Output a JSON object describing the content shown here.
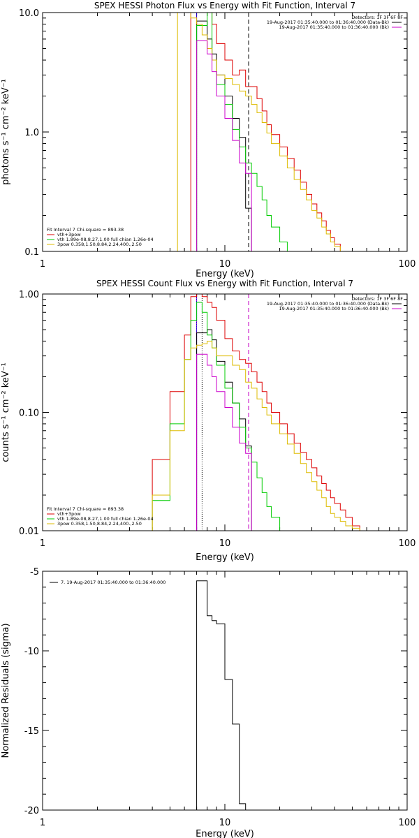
{
  "colors": {
    "black": "#000000",
    "red": "#dd0000",
    "green": "#00cc00",
    "yellow": "#ddbb00",
    "magenta": "#cc00cc",
    "blue": "#0000cc"
  },
  "chart_data": [
    {
      "type": "line",
      "step": true,
      "title": "SPEX HESSI Photon Flux vs Energy with Fit Function, Interval 7",
      "xlabel": "Energy (keV)",
      "ylabel": "photons s⁻¹ cm⁻² keV⁻¹",
      "xscale": "log",
      "yscale": "log",
      "xlim": [
        1,
        100
      ],
      "ylim": [
        0.1,
        10
      ],
      "xticks": [
        "1",
        "10",
        "100"
      ],
      "yticks": [
        "0.1",
        "1.0",
        "10.0"
      ],
      "legend_top": {
        "detectors": "Detectors: 1F 3F 6F 8F",
        "entries": [
          {
            "text": "19-Aug-2017 01:35:40.000 to 01:36:40.000 (Data-Bk)",
            "color": "black"
          },
          {
            "text": "19-Aug-2017 01:35:40.000 to 01:36:40.000 (Bk)",
            "color": "magenta"
          }
        ]
      },
      "legend_bottom": {
        "header": "Fit Interval 7   Chi-square = 893.38",
        "entries": [
          {
            "text": "vth+3pow",
            "color": "red"
          },
          {
            "text": "vth 1.89e-08,8.27,1.00  full chian 1.26e-04",
            "color": "green"
          },
          {
            "text": "3pow 0.358,1.50,8.84,2.24,400.,2.50",
            "color": "yellow"
          }
        ]
      },
      "vlines": [
        {
          "x": 7.0,
          "color": "blue",
          "style": "solid"
        },
        {
          "x": 7.0,
          "color": "magenta",
          "style": "dotted"
        },
        {
          "x": 13.5,
          "color": "black",
          "style": "dashed"
        }
      ],
      "edges": [
        3,
        3.5,
        4,
        4.5,
        5,
        5.5,
        6,
        6.5,
        7,
        7.5,
        8,
        8.5,
        9,
        10,
        11,
        12,
        13,
        14,
        15,
        16,
        17,
        18,
        20,
        22,
        24,
        26,
        28,
        30,
        32,
        34,
        36,
        38,
        40,
        43,
        46,
        50,
        55,
        60,
        65
      ],
      "series": [
        {
          "color": "black",
          "values": [
            null,
            null,
            null,
            null,
            null,
            null,
            null,
            null,
            8.5,
            8.5,
            6.0,
            4.5,
            3.0,
            2.0,
            1.3,
            0.9,
            0.23
          ]
        },
        {
          "color": "red",
          "values": [
            null,
            null,
            null,
            null,
            null,
            null,
            null,
            11.0,
            11.0,
            10.5,
            11.0,
            8.0,
            5.5,
            4.0,
            3.0,
            3.3,
            2.4,
            2.4,
            1.9,
            1.5,
            1.15,
            0.95,
            0.75,
            0.6,
            0.48,
            0.38,
            0.3,
            0.25,
            0.21,
            0.18,
            0.15,
            0.13,
            0.115,
            0.1
          ]
        },
        {
          "color": "green",
          "values": [
            null,
            null,
            null,
            null,
            null,
            null,
            null,
            null,
            7.8,
            7.8,
            11.0,
            4.0,
            2.5,
            1.7,
            1.05,
            0.75,
            0.55,
            0.45,
            0.35,
            0.27,
            0.2,
            0.16,
            0.12,
            0.1
          ]
        },
        {
          "color": "yellow",
          "values": [
            null,
            null,
            null,
            null,
            null,
            11.0,
            11.0,
            9.0,
            8.0,
            6.5,
            5.0,
            4.0,
            3.0,
            2.8,
            2.5,
            2.2,
            2.0,
            1.7,
            1.45,
            1.2,
            0.98,
            0.8,
            0.63,
            0.5,
            0.4,
            0.33,
            0.27,
            0.22,
            0.19,
            0.16,
            0.14,
            0.12,
            0.11,
            0.1
          ]
        },
        {
          "color": "magenta",
          "values": [
            null,
            null,
            null,
            null,
            null,
            null,
            null,
            null,
            5.8,
            5.8,
            4.5,
            3.2,
            2.0,
            1.3,
            0.85,
            0.55,
            0.45
          ]
        }
      ]
    },
    {
      "type": "line",
      "step": true,
      "title": "SPEX HESSI Count Flux vs Energy with Fit Function, Interval 7",
      "xlabel": "Energy (keV)",
      "ylabel": "counts s⁻¹ cm⁻² keV⁻¹",
      "xscale": "log",
      "yscale": "log",
      "xlim": [
        1,
        100
      ],
      "ylim": [
        0.01,
        1
      ],
      "xticks": [
        "1",
        "10",
        "100"
      ],
      "yticks": [
        "0.01",
        "0.10",
        "1.00"
      ],
      "legend_top": {
        "detectors": "Detectors: 1F 3F 6F 8F",
        "entries": [
          {
            "text": "19-Aug-2017 01:35:40.000 to 01:36:40.000 (Data-Bk)",
            "color": "black"
          },
          {
            "text": "19-Aug-2017 01:35:40.000 to 01:36:40.000 (Bk)",
            "color": "magenta"
          }
        ]
      },
      "legend_bottom": {
        "header": "Fit Interval 7   Chi-square = 893.38",
        "entries": [
          {
            "text": "vth+3pow",
            "color": "red"
          },
          {
            "text": "vth 1.89e-08,8.27,1.00  full chian 1.26e-04",
            "color": "green"
          },
          {
            "text": "3pow 0.358,1.50,8.84,2.24,400.,2.50",
            "color": "yellow"
          }
        ]
      },
      "vlines": [
        {
          "x": 7.0,
          "color": "blue",
          "style": "solid"
        },
        {
          "x": 7.0,
          "color": "magenta",
          "style": "dotted"
        },
        {
          "x": 7.5,
          "color": "black",
          "style": "dotted"
        },
        {
          "x": 13.5,
          "color": "black",
          "style": "dashed"
        },
        {
          "x": 13.5,
          "color": "magenta",
          "style": "dashed"
        }
      ],
      "edges": [
        3,
        3.5,
        4,
        4.5,
        5,
        5.5,
        6,
        6.5,
        7,
        7.5,
        8,
        8.5,
        9,
        10,
        11,
        12,
        13,
        14,
        15,
        16,
        17,
        18,
        20,
        22,
        24,
        26,
        28,
        30,
        32,
        34,
        36,
        38,
        40,
        43,
        46,
        50,
        55,
        60,
        65
      ],
      "series": [
        {
          "color": "black",
          "values": [
            null,
            null,
            null,
            null,
            null,
            null,
            null,
            null,
            0.47,
            0.47,
            0.5,
            0.41,
            0.27,
            0.18,
            0.12,
            0.088,
            0.052
          ]
        },
        {
          "color": "red",
          "values": [
            null,
            null,
            0.04,
            0.04,
            0.15,
            0.15,
            0.45,
            0.95,
            1.0,
            0.95,
            0.85,
            0.77,
            0.6,
            0.42,
            0.33,
            0.28,
            0.26,
            0.22,
            0.18,
            0.15,
            0.12,
            0.1,
            0.08,
            0.066,
            0.055,
            0.046,
            0.04,
            0.034,
            0.029,
            0.025,
            0.022,
            0.019,
            0.017,
            0.015,
            0.013,
            0.011
          ]
        },
        {
          "color": "green",
          "values": [
            null,
            null,
            0.018,
            0.018,
            0.08,
            0.08,
            0.28,
            0.6,
            0.85,
            0.7,
            0.45,
            0.35,
            0.25,
            0.16,
            0.12,
            0.075,
            0.05,
            0.038,
            0.028,
            0.021,
            0.016,
            0.013,
            0.01
          ]
        },
        {
          "color": "yellow",
          "values": [
            null,
            null,
            0.02,
            0.02,
            0.07,
            0.07,
            0.28,
            0.35,
            0.37,
            0.38,
            0.4,
            0.35,
            0.3,
            0.3,
            0.25,
            0.23,
            0.18,
            0.16,
            0.13,
            0.11,
            0.095,
            0.08,
            0.066,
            0.054,
            0.045,
            0.037,
            0.031,
            0.026,
            0.022,
            0.019,
            0.016,
            0.014,
            0.013,
            0.012,
            0.011,
            0.0105,
            0.01
          ]
        },
        {
          "color": "magenta",
          "values": [
            null,
            null,
            null,
            null,
            null,
            null,
            null,
            null,
            0.31,
            0.31,
            0.25,
            0.2,
            0.15,
            0.11,
            0.075,
            0.055,
            0.045
          ]
        }
      ]
    },
    {
      "type": "line",
      "step": true,
      "title": "",
      "xlabel": "Energy (keV)",
      "ylabel": "Normalized Residuals (sigma)",
      "xscale": "log",
      "yscale": "linear",
      "xlim": [
        1,
        100
      ],
      "ylim": [
        -20,
        -5
      ],
      "xticks": [
        "1",
        "10",
        "100"
      ],
      "yticks": [
        "-20",
        "-15",
        "-10",
        "-5"
      ],
      "legend_top": {
        "entries": [
          {
            "text": "7. 19-Aug-2017 01:35:40.000 to 01:36:40.000",
            "color": "black"
          }
        ]
      },
      "edges": [
        7,
        7.5,
        8,
        8.5,
        9,
        10,
        11,
        12,
        13,
        14
      ],
      "series": [
        {
          "color": "black",
          "values": [
            -5.6,
            -5.6,
            -7.8,
            -8.1,
            -8.3,
            -11.8,
            -14.6,
            -19.6,
            -20
          ]
        }
      ]
    }
  ]
}
